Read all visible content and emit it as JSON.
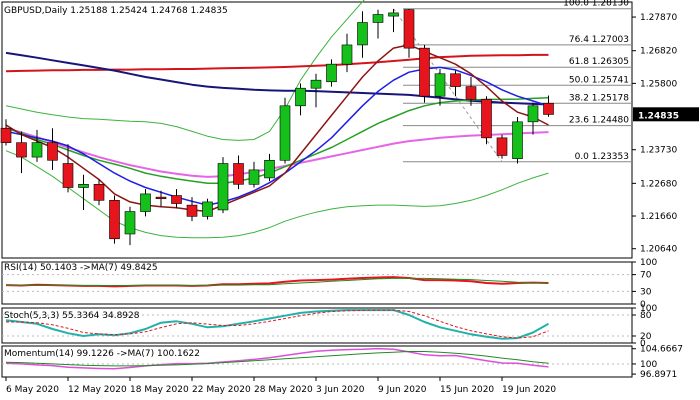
{
  "window": {
    "symbol_line": "GBPUSD,Daily  1.25188 1.25424 1.24768 1.24835",
    "current_price": "1.24835"
  },
  "colors": {
    "bull": "#16c01a",
    "bear": "#e6141c",
    "wick": "#000000",
    "ma_navy": "#16167a",
    "ma_red": "#d4141c",
    "ma_maroon": "#8c1414",
    "ma_blue": "#1e1ee6",
    "ma_green": "#28a028",
    "ma_magenta": "#e664e6",
    "bollinger": "#3cb43c",
    "fib": "#888888",
    "price_box": "#000000",
    "rsi_line": "#e6141c",
    "rsi_ma": "#228b22",
    "stoch_main": "#20b2aa",
    "stoch_signal": "#e6141c",
    "mom_line": "#da50da",
    "mom_ma": "#228b22"
  },
  "chart_data": [
    {
      "type": "candlestick",
      "title": "GBPUSD,Daily",
      "ohlc_header": "1.25188 1.25424 1.24768 1.24835",
      "y_ticks": [
        "1.27870",
        "1.26820",
        "1.25800",
        "1.24835",
        "1.23730",
        "1.22680",
        "1.21660",
        "1.20640"
      ],
      "x_ticks": [
        "6 May 2020",
        "12 May 2020",
        "18 May 2020",
        "22 May 2020",
        "28 May 2020",
        "3 Jun 2020",
        "9 Jun 2020",
        "15 Jun 2020",
        "19 Jun 2020"
      ],
      "ylim": [
        1.2035,
        1.2834
      ],
      "candles": [
        {
          "o": 1.244,
          "h": 1.2468,
          "l": 1.2386,
          "c": 1.2395
        },
        {
          "o": 1.2395,
          "h": 1.243,
          "l": 1.23,
          "c": 1.235
        },
        {
          "o": 1.235,
          "h": 1.2435,
          "l": 1.2335,
          "c": 1.2395
        },
        {
          "o": 1.2395,
          "h": 1.244,
          "l": 1.231,
          "c": 1.234
        },
        {
          "o": 1.233,
          "h": 1.239,
          "l": 1.224,
          "c": 1.2255
        },
        {
          "o": 1.2255,
          "h": 1.2295,
          "l": 1.2185,
          "c": 1.2265
        },
        {
          "o": 1.2265,
          "h": 1.228,
          "l": 1.22,
          "c": 1.2215
        },
        {
          "o": 1.2215,
          "h": 1.223,
          "l": 1.208,
          "c": 1.2095
        },
        {
          "o": 1.211,
          "h": 1.2195,
          "l": 1.2075,
          "c": 1.218
        },
        {
          "o": 1.218,
          "h": 1.225,
          "l": 1.2165,
          "c": 1.2235
        },
        {
          "o": 1.2225,
          "h": 1.2245,
          "l": 1.2195,
          "c": 1.222
        },
        {
          "o": 1.223,
          "h": 1.225,
          "l": 1.219,
          "c": 1.2205
        },
        {
          "o": 1.22,
          "h": 1.2225,
          "l": 1.215,
          "c": 1.2165
        },
        {
          "o": 1.2165,
          "h": 1.222,
          "l": 1.2155,
          "c": 1.221
        },
        {
          "o": 1.2185,
          "h": 1.235,
          "l": 1.2175,
          "c": 1.233
        },
        {
          "o": 1.233,
          "h": 1.2355,
          "l": 1.225,
          "c": 1.2265
        },
        {
          "o": 1.2265,
          "h": 1.2335,
          "l": 1.2255,
          "c": 1.231
        },
        {
          "o": 1.2285,
          "h": 1.236,
          "l": 1.2275,
          "c": 1.234
        },
        {
          "o": 1.234,
          "h": 1.2535,
          "l": 1.233,
          "c": 1.251
        },
        {
          "o": 1.251,
          "h": 1.258,
          "l": 1.248,
          "c": 1.2565
        },
        {
          "o": 1.2565,
          "h": 1.261,
          "l": 1.2505,
          "c": 1.259
        },
        {
          "o": 1.2585,
          "h": 1.2655,
          "l": 1.257,
          "c": 1.264
        },
        {
          "o": 1.264,
          "h": 1.2735,
          "l": 1.2615,
          "c": 1.27
        },
        {
          "o": 1.27,
          "h": 1.2805,
          "l": 1.266,
          "c": 1.277
        },
        {
          "o": 1.277,
          "h": 1.281,
          "l": 1.272,
          "c": 1.2795
        },
        {
          "o": 1.279,
          "h": 1.2812,
          "l": 1.274,
          "c": 1.28
        },
        {
          "o": 1.281,
          "h": 1.2812,
          "l": 1.266,
          "c": 1.269
        },
        {
          "o": 1.269,
          "h": 1.27,
          "l": 1.252,
          "c": 1.254
        },
        {
          "o": 1.254,
          "h": 1.2625,
          "l": 1.251,
          "c": 1.261
        },
        {
          "o": 1.261,
          "h": 1.262,
          "l": 1.254,
          "c": 1.257
        },
        {
          "o": 1.257,
          "h": 1.26,
          "l": 1.251,
          "c": 1.253
        },
        {
          "o": 1.253,
          "h": 1.254,
          "l": 1.239,
          "c": 1.241
        },
        {
          "o": 1.241,
          "h": 1.242,
          "l": 1.2345,
          "c": 1.2355
        },
        {
          "o": 1.2345,
          "h": 1.2475,
          "l": 1.233,
          "c": 1.246
        },
        {
          "o": 1.246,
          "h": 1.252,
          "l": 1.242,
          "c": 1.251
        },
        {
          "o": 1.2518,
          "h": 1.2542,
          "l": 1.2476,
          "c": 1.2483
        }
      ],
      "ma_navy": [
        1.2675,
        1.2668,
        1.266,
        1.2652,
        1.2644,
        1.2636,
        1.2628,
        1.262,
        1.261,
        1.26,
        1.2592,
        1.2584,
        1.2576,
        1.257,
        1.2566,
        1.2563,
        1.256,
        1.2558,
        1.2557,
        1.2557,
        1.2556,
        1.2554,
        1.2552,
        1.255,
        1.2548,
        1.2546,
        1.2544,
        1.254,
        1.2535,
        1.253,
        1.2526,
        1.2523,
        1.252,
        1.2518,
        1.2516,
        1.2514
      ],
      "ma_red": [
        1.2618,
        1.2619,
        1.262,
        1.2621,
        1.2621,
        1.2622,
        1.2622,
        1.2623,
        1.2623,
        1.2624,
        1.2624,
        1.2625,
        1.2625,
        1.2626,
        1.2627,
        1.2628,
        1.2629,
        1.263,
        1.2631,
        1.2633,
        1.2635,
        1.2637,
        1.264,
        1.2643,
        1.2646,
        1.265,
        1.2654,
        1.2658,
        1.2662,
        1.2664,
        1.2666,
        1.2667,
        1.2668,
        1.2668,
        1.2669,
        1.2669
      ],
      "ma_maroon": [
        1.245,
        1.242,
        1.24,
        1.238,
        1.235,
        1.2315,
        1.228,
        1.2235,
        1.221,
        1.22,
        1.2195,
        1.2192,
        1.2185,
        1.218,
        1.22,
        1.222,
        1.224,
        1.226,
        1.23,
        1.236,
        1.242,
        1.248,
        1.254,
        1.26,
        1.265,
        1.269,
        1.27,
        1.268,
        1.266,
        1.264,
        1.261,
        1.257,
        1.2525,
        1.249,
        1.2475,
        1.245
      ],
      "ma_blue": [
        1.243,
        1.242,
        1.241,
        1.24,
        1.2385,
        1.236,
        1.233,
        1.23,
        1.2275,
        1.2255,
        1.224,
        1.2225,
        1.2212,
        1.22,
        1.221,
        1.2225,
        1.2245,
        1.227,
        1.23,
        1.2335,
        1.237,
        1.241,
        1.246,
        1.251,
        1.2555,
        1.259,
        1.2615,
        1.2625,
        1.263,
        1.2622,
        1.2605,
        1.2585,
        1.256,
        1.254,
        1.2525,
        1.251
      ],
      "ma_green": [
        1.244,
        1.2425,
        1.2405,
        1.239,
        1.2372,
        1.2355,
        1.234,
        1.2328,
        1.2315,
        1.23,
        1.229,
        1.2282,
        1.2275,
        1.2268,
        1.2268,
        1.2275,
        1.2285,
        1.23,
        1.232,
        1.234,
        1.236,
        1.238,
        1.2405,
        1.243,
        1.2455,
        1.2475,
        1.2495,
        1.251,
        1.252,
        1.2525,
        1.2528,
        1.253,
        1.253,
        1.2531,
        1.2533,
        1.2535
      ],
      "ma_magenta": [
        1.244,
        1.2427,
        1.2412,
        1.2397,
        1.238,
        1.2365,
        1.235,
        1.2337,
        1.2325,
        1.2315,
        1.2305,
        1.2298,
        1.2292,
        1.2288,
        1.229,
        1.2296,
        1.2304,
        1.2313,
        1.2322,
        1.2332,
        1.2342,
        1.2352,
        1.2362,
        1.2372,
        1.2382,
        1.2392,
        1.24,
        1.2405,
        1.241,
        1.2414,
        1.2417,
        1.2419,
        1.2421,
        1.2424,
        1.2426,
        1.2428
      ],
      "bb_upper": [
        1.251,
        1.25,
        1.249,
        1.2482,
        1.2475,
        1.247,
        1.2468,
        1.2465,
        1.2462,
        1.246,
        1.2455,
        1.2445,
        1.243,
        1.2415,
        1.2405,
        1.2402,
        1.2405,
        1.243,
        1.25,
        1.259,
        1.266,
        1.2725,
        1.278,
        1.2835,
        1.2885,
        1.2925,
        1.2945,
        1.295,
        1.2945,
        1.2935,
        1.2925,
        1.2915,
        1.2905,
        1.2895,
        1.2885,
        1.2878
      ],
      "bb_lower": [
        1.237,
        1.235,
        1.232,
        1.229,
        1.2255,
        1.222,
        1.2185,
        1.215,
        1.213,
        1.2115,
        1.2105,
        1.21,
        1.2098,
        1.2098,
        1.21,
        1.2105,
        1.2115,
        1.213,
        1.215,
        1.2165,
        1.2178,
        1.2188,
        1.2195,
        1.2198,
        1.22,
        1.22,
        1.2198,
        1.2196,
        1.2198,
        1.2205,
        1.2215,
        1.223,
        1.2248,
        1.2268,
        1.2285,
        1.23
      ],
      "fib_levels": [
        {
          "label": "100.0 1.28130",
          "value": 1.2813
        },
        {
          "label": "76.4 1.27003",
          "value": 1.27003
        },
        {
          "label": "61.8 1.26305",
          "value": 1.26305
        },
        {
          "label": "50.0 1.25741",
          "value": 1.25741
        },
        {
          "label": "38.2 1.25178",
          "value": 1.25178
        },
        {
          "label": "23.6 1.24480",
          "value": 1.2448
        },
        {
          "label": "0.0 1.23353",
          "value": 1.23353
        }
      ]
    },
    {
      "type": "line",
      "title": "RSI(14) 50.1403  ->MA(7) 49.8425",
      "y_ticks": [
        "100",
        "70",
        "30",
        "0"
      ],
      "ylim": [
        0,
        100
      ],
      "series": [
        {
          "name": "RSI(14)",
          "values": [
            45,
            44,
            46,
            45,
            44,
            43,
            43,
            42,
            43,
            44,
            44,
            44,
            43,
            44,
            47,
            47,
            48,
            49,
            53,
            56,
            57,
            58,
            60,
            62,
            63,
            64,
            62,
            57,
            57,
            56,
            54,
            50,
            48,
            50,
            51,
            50
          ]
        },
        {
          "name": "MA(7)",
          "values": [
            44,
            44,
            44,
            44,
            44,
            44,
            44,
            44,
            44,
            44,
            44,
            44,
            44,
            44,
            45,
            45,
            46,
            46,
            48,
            50,
            52,
            54,
            56,
            58,
            60,
            61,
            61,
            61,
            60,
            59,
            58,
            56,
            54,
            52,
            51,
            50
          ]
        }
      ]
    },
    {
      "type": "line",
      "title": "Stoch(5,3,3) 55.3364 34.8928",
      "y_ticks": [
        "100",
        "80",
        "20",
        "0"
      ],
      "ylim": [
        0,
        100
      ],
      "series": [
        {
          "name": "Stoch",
          "values": [
            65,
            60,
            55,
            40,
            28,
            20,
            25,
            22,
            28,
            40,
            58,
            62,
            55,
            45,
            48,
            55,
            62,
            70,
            78,
            86,
            90,
            92,
            94,
            94,
            94,
            94,
            80,
            60,
            45,
            35,
            25,
            18,
            12,
            14,
            30,
            55
          ]
        },
        {
          "name": "Signal",
          "values": [
            60,
            60,
            58,
            52,
            42,
            30,
            26,
            24,
            26,
            32,
            44,
            55,
            58,
            54,
            50,
            50,
            55,
            62,
            70,
            78,
            85,
            90,
            92,
            93,
            94,
            94,
            90,
            78,
            62,
            47,
            35,
            26,
            18,
            14,
            18,
            35
          ]
        }
      ]
    },
    {
      "type": "line",
      "title": "Momentum(14) 99.1226  ->MA(7) 100.1622",
      "y_ticks": [
        "104.6667",
        "100",
        "96.8971"
      ],
      "ylim": [
        96.0,
        105.5
      ],
      "series": [
        {
          "name": "Momentum(14)",
          "values": [
            100.2,
            100.0,
            99.7,
            99.5,
            99.0,
            98.8,
            98.6,
            98.5,
            98.9,
            99.4,
            99.8,
            100.1,
            100.1,
            100.2,
            100.6,
            101.0,
            101.4,
            101.9,
            102.6,
            103.3,
            103.9,
            104.2,
            104.4,
            104.5,
            104.7,
            104.5,
            103.7,
            102.8,
            102.5,
            102.6,
            101.8,
            101.0,
            100.3,
            100.2,
            99.6,
            99.1
          ]
        },
        {
          "name": "MA(7)",
          "values": [
            100.5,
            100.4,
            100.2,
            100.0,
            99.8,
            99.6,
            99.5,
            99.4,
            99.4,
            99.5,
            99.6,
            99.7,
            99.9,
            100.1,
            100.4,
            100.7,
            101.0,
            101.3,
            101.6,
            101.9,
            102.2,
            102.5,
            102.8,
            103.1,
            103.4,
            103.6,
            103.8,
            103.8,
            103.6,
            103.3,
            102.9,
            102.4,
            101.8,
            101.3,
            100.7,
            100.2
          ]
        }
      ]
    }
  ]
}
